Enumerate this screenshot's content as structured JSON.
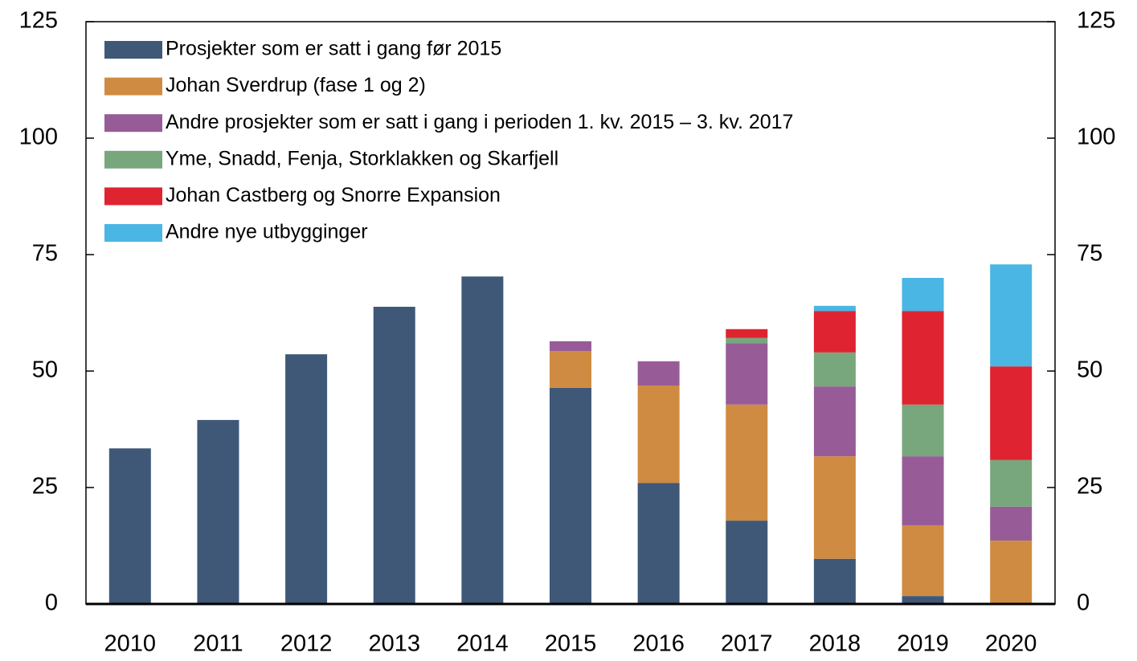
{
  "chart_data": {
    "type": "stacked_bar",
    "categories": [
      "2010",
      "2011",
      "2012",
      "2013",
      "2014",
      "2015",
      "2016",
      "2017",
      "2018",
      "2019",
      "2020"
    ],
    "series": [
      {
        "name": "Prosjekter som er satt i gang før 2015",
        "color": "#3f5877",
        "values": [
          33.4,
          39.5,
          53.6,
          63.8,
          70.3,
          46.4,
          26.0,
          17.9,
          9.7,
          1.7,
          null
        ]
      },
      {
        "name": "Johan Sverdrup (fase 1 og 2)",
        "color": "#cf8b41",
        "values": [
          null,
          null,
          null,
          null,
          null,
          7.9,
          20.9,
          24.9,
          22.0,
          15.2,
          13.6
        ]
      },
      {
        "name": "Andre prosjekter som er satt i gang i perioden 1. kv. 2015 – 3. kv. 2017",
        "color": "#975c98",
        "values": [
          null,
          null,
          null,
          null,
          null,
          2.1,
          5.2,
          13.2,
          15.0,
          14.8,
          7.3
        ]
      },
      {
        "name": "Yme, Snadd, Fenja, Storklakken og Skarfjell",
        "color": "#78a77d",
        "values": [
          null,
          null,
          null,
          null,
          null,
          null,
          null,
          1.1,
          7.3,
          11.1,
          10.0
        ]
      },
      {
        "name": "Johan Castberg og Snorre Expansion",
        "color": "#df2330",
        "values": [
          null,
          null,
          null,
          null,
          null,
          null,
          null,
          1.9,
          8.9,
          20.1,
          20.1
        ]
      },
      {
        "name": "Andre nye utbygginger",
        "color": "#4ab6e3",
        "values": [
          null,
          null,
          null,
          null,
          null,
          null,
          null,
          null,
          1.1,
          7.1,
          21.9
        ]
      }
    ],
    "ylim": [
      0,
      125
    ],
    "yticks": [
      0,
      25,
      50,
      75,
      100,
      125
    ],
    "y2lim": [
      0,
      125
    ],
    "y2ticks": [
      0,
      25,
      50,
      75,
      100,
      125
    ],
    "legend": "upper left"
  }
}
